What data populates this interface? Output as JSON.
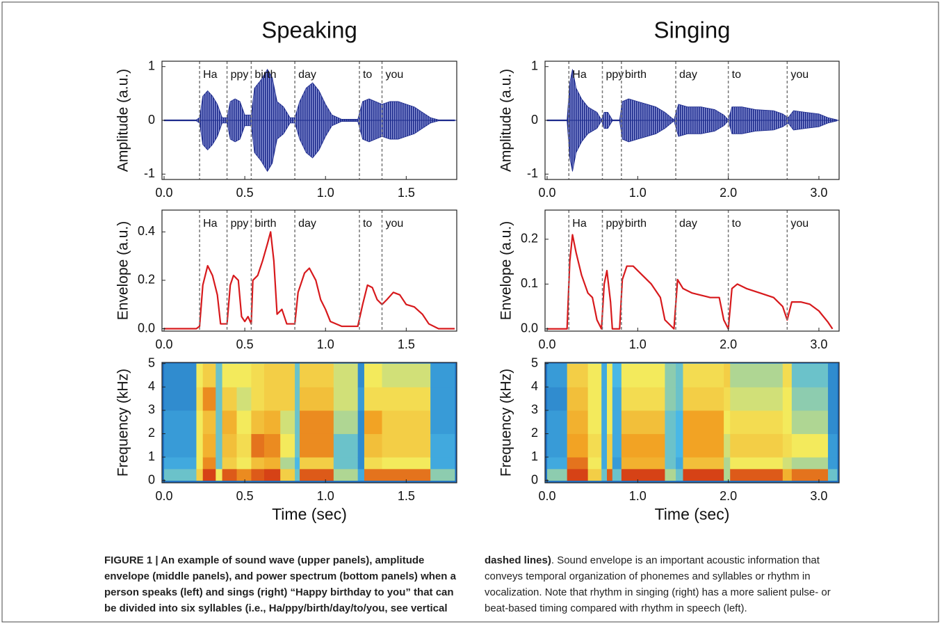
{
  "chart_data": [
    {
      "type": "area",
      "title": "Speaking",
      "ylabel": "Amplitude (a.u.)",
      "color": "#1c2a8c",
      "xlim": [
        0,
        1.8
      ],
      "ylim": [
        -1.1,
        1.1
      ],
      "xticks": [
        {
          "value": 0,
          "label": "0.0"
        },
        0.5,
        {
          "value": 1,
          "label": "1.0"
        },
        1.5
      ],
      "yticks": [
        -1,
        0,
        1
      ],
      "annotations": [
        {
          "x": 0.22,
          "text": "Ha"
        },
        {
          "x": 0.39,
          "text": "ppy"
        },
        {
          "x": 0.54,
          "text": "birth"
        },
        {
          "x": 0.81,
          "text": "day"
        },
        {
          "x": 1.21,
          "text": "to"
        },
        {
          "x": 1.35,
          "text": "you"
        }
      ],
      "x": [
        0,
        0.2,
        0.22,
        0.24,
        0.27,
        0.3,
        0.33,
        0.36,
        0.39,
        0.41,
        0.44,
        0.47,
        0.5,
        0.54,
        0.56,
        0.6,
        0.64,
        0.67,
        0.7,
        0.74,
        0.78,
        0.81,
        0.84,
        0.88,
        0.92,
        0.96,
        1.0,
        1.04,
        1.1,
        1.2,
        1.23,
        1.27,
        1.31,
        1.35,
        1.4,
        1.45,
        1.5,
        1.55,
        1.6,
        1.65,
        1.7,
        1.8
      ],
      "values": [
        0.01,
        0.01,
        0.05,
        0.45,
        0.55,
        0.45,
        0.3,
        0.05,
        0.05,
        0.35,
        0.4,
        0.35,
        0.1,
        0.1,
        0.6,
        0.75,
        0.95,
        0.8,
        0.35,
        0.25,
        0.05,
        0.05,
        0.35,
        0.6,
        0.7,
        0.55,
        0.3,
        0.1,
        0.02,
        0.02,
        0.35,
        0.4,
        0.35,
        0.3,
        0.35,
        0.35,
        0.3,
        0.25,
        0.15,
        0.05,
        0.01,
        0.01
      ]
    },
    {
      "type": "area",
      "title": "Singing",
      "ylabel": "Amplitude (a.u.)",
      "color": "#1c2a8c",
      "xlim": [
        0,
        3.2
      ],
      "ylim": [
        -1.1,
        1.1
      ],
      "xticks": [
        {
          "value": 0,
          "label": "0.0"
        },
        {
          "value": 1,
          "label": "1.0"
        },
        {
          "value": 2,
          "label": "2.0"
        },
        {
          "value": 3,
          "label": "3.0"
        }
      ],
      "yticks": [
        -1,
        0,
        1
      ],
      "annotations": [
        {
          "x": 0.24,
          "text": "Ha"
        },
        {
          "x": 0.61,
          "text": "ppy"
        },
        {
          "x": 0.82,
          "text": "birth"
        },
        {
          "x": 1.42,
          "text": "day"
        },
        {
          "x": 2.0,
          "text": "to"
        },
        {
          "x": 2.65,
          "text": "you"
        }
      ],
      "x": [
        0,
        0.22,
        0.25,
        0.28,
        0.32,
        0.38,
        0.45,
        0.55,
        0.6,
        0.63,
        0.67,
        0.72,
        0.8,
        0.83,
        0.9,
        1.0,
        1.1,
        1.2,
        1.3,
        1.4,
        1.45,
        1.55,
        1.7,
        1.85,
        1.95,
        2.0,
        2.04,
        2.15,
        2.3,
        2.5,
        2.6,
        2.66,
        2.72,
        2.85,
        3.0,
        3.1,
        3.2
      ],
      "values": [
        0.01,
        0.01,
        0.7,
        0.95,
        0.6,
        0.4,
        0.25,
        0.15,
        0.01,
        0.15,
        0.15,
        0.01,
        0.01,
        0.35,
        0.4,
        0.35,
        0.3,
        0.25,
        0.15,
        0.01,
        0.3,
        0.25,
        0.25,
        0.2,
        0.1,
        0.01,
        0.25,
        0.25,
        0.2,
        0.18,
        0.12,
        0.05,
        0.18,
        0.15,
        0.12,
        0.05,
        0.01
      ]
    },
    {
      "type": "line",
      "ylabel": "Envelope (a.u.)",
      "color": "#d7191c",
      "xlim": [
        0,
        1.8
      ],
      "ylim": [
        -0.01,
        0.49
      ],
      "xticks": [
        {
          "value": 0,
          "label": "0.0"
        },
        0.5,
        {
          "value": 1,
          "label": "1.0"
        },
        1.5
      ],
      "yticks": [
        {
          "value": 0,
          "label": "0.0"
        },
        0.2,
        0.4
      ],
      "annotations": [
        {
          "x": 0.22,
          "text": "Ha"
        },
        {
          "x": 0.39,
          "text": "ppy"
        },
        {
          "x": 0.54,
          "text": "birth"
        },
        {
          "x": 0.81,
          "text": "day"
        },
        {
          "x": 1.21,
          "text": "to"
        },
        {
          "x": 1.35,
          "text": "you"
        }
      ],
      "x": [
        0,
        0.2,
        0.22,
        0.24,
        0.27,
        0.3,
        0.33,
        0.35,
        0.39,
        0.41,
        0.43,
        0.46,
        0.48,
        0.5,
        0.52,
        0.54,
        0.55,
        0.58,
        0.61,
        0.64,
        0.66,
        0.68,
        0.7,
        0.73,
        0.76,
        0.81,
        0.83,
        0.87,
        0.9,
        0.94,
        0.97,
        1.0,
        1.03,
        1.1,
        1.2,
        1.23,
        1.26,
        1.29,
        1.32,
        1.35,
        1.38,
        1.42,
        1.46,
        1.5,
        1.55,
        1.6,
        1.64,
        1.7,
        1.8
      ],
      "values": [
        0,
        0,
        0.01,
        0.18,
        0.26,
        0.22,
        0.14,
        0.02,
        0.02,
        0.18,
        0.22,
        0.2,
        0.05,
        0.03,
        0.05,
        0.02,
        0.2,
        0.22,
        0.28,
        0.35,
        0.4,
        0.28,
        0.06,
        0.08,
        0.02,
        0.02,
        0.15,
        0.23,
        0.25,
        0.2,
        0.12,
        0.08,
        0.03,
        0.01,
        0.01,
        0.1,
        0.18,
        0.17,
        0.12,
        0.1,
        0.12,
        0.15,
        0.14,
        0.1,
        0.09,
        0.06,
        0.02,
        0,
        0
      ]
    },
    {
      "type": "line",
      "ylabel": "Envelope (a.u.)",
      "color": "#d7191c",
      "xlim": [
        0,
        3.2
      ],
      "ylim": [
        -0.005,
        0.265
      ],
      "xticks": [
        {
          "value": 0,
          "label": "0.0"
        },
        {
          "value": 1,
          "label": "1.0"
        },
        {
          "value": 2,
          "label": "2.0"
        },
        {
          "value": 3,
          "label": "3.0"
        }
      ],
      "yticks": [
        {
          "value": 0,
          "label": "0.0"
        },
        0.1,
        0.2
      ],
      "annotations": [
        {
          "x": 0.24,
          "text": "Ha"
        },
        {
          "x": 0.61,
          "text": "ppy"
        },
        {
          "x": 0.82,
          "text": "birth"
        },
        {
          "x": 1.42,
          "text": "day"
        },
        {
          "x": 2.0,
          "text": "to"
        },
        {
          "x": 2.65,
          "text": "you"
        }
      ],
      "x": [
        0,
        0.22,
        0.25,
        0.28,
        0.32,
        0.38,
        0.45,
        0.5,
        0.55,
        0.6,
        0.63,
        0.66,
        0.7,
        0.72,
        0.8,
        0.83,
        0.88,
        0.95,
        1.05,
        1.15,
        1.25,
        1.3,
        1.4,
        1.44,
        1.5,
        1.6,
        1.7,
        1.8,
        1.9,
        1.95,
        2.0,
        2.04,
        2.1,
        2.2,
        2.35,
        2.5,
        2.6,
        2.65,
        2.7,
        2.8,
        2.9,
        3.0,
        3.1,
        3.15
      ],
      "values": [
        0,
        0,
        0.15,
        0.21,
        0.17,
        0.12,
        0.08,
        0.07,
        0.02,
        0,
        0.1,
        0.13,
        0.06,
        0,
        0,
        0.11,
        0.14,
        0.14,
        0.12,
        0.1,
        0.07,
        0.02,
        0,
        0.11,
        0.09,
        0.08,
        0.075,
        0.07,
        0.07,
        0.02,
        0,
        0.09,
        0.1,
        0.09,
        0.08,
        0.07,
        0.05,
        0.02,
        0.06,
        0.06,
        0.055,
        0.04,
        0.015,
        0
      ]
    },
    {
      "type": "heatmap",
      "ylabel": "Frequency (kHz)",
      "xlabel": "Time (sec)",
      "colormap": [
        "#1f6fc0",
        "#49b8e6",
        "#f3ea5c",
        "#f2a324",
        "#cf2a12"
      ],
      "xlim": [
        0,
        1.8
      ],
      "ylim": [
        -0.1,
        5.05
      ],
      "xticks": [
        {
          "value": 0,
          "label": "0.0"
        },
        0.5,
        {
          "value": 1,
          "label": "1.0"
        },
        1.5
      ],
      "yticks": [
        0,
        1,
        2,
        3,
        4,
        5
      ],
      "x": [
        0,
        0.2,
        0.24,
        0.32,
        0.36,
        0.45,
        0.54,
        0.62,
        0.72,
        0.81,
        0.84,
        1.05,
        1.2,
        1.24,
        1.35,
        1.65,
        1.8
      ],
      "y": [
        0,
        0.5,
        1,
        2,
        3,
        4,
        5
      ],
      "z": [
        [
          0.3,
          0.2,
          0.15,
          0.15,
          0.1,
          0.1
        ],
        [
          0.6,
          0.5,
          0.5,
          0.5,
          0.55,
          0.5
        ],
        [
          0.95,
          0.8,
          0.7,
          0.65,
          0.8,
          0.6
        ],
        [
          0.5,
          0.3,
          0.3,
          0.3,
          0.3,
          0.3
        ],
        [
          0.9,
          0.6,
          0.65,
          0.7,
          0.6,
          0.5
        ],
        [
          0.8,
          0.5,
          0.55,
          0.5,
          0.45,
          0.5
        ],
        [
          0.9,
          0.65,
          0.85,
          0.65,
          0.55,
          0.55
        ],
        [
          0.95,
          0.7,
          0.8,
          0.7,
          0.6,
          0.6
        ],
        [
          0.6,
          0.4,
          0.5,
          0.45,
          0.6,
          0.6
        ],
        [
          0.3,
          0.25,
          0.3,
          0.3,
          0.3,
          0.3
        ],
        [
          0.9,
          0.6,
          0.8,
          0.8,
          0.65,
          0.6
        ],
        [
          0.4,
          0.3,
          0.3,
          0.4,
          0.45,
          0.45
        ],
        [
          0.2,
          0.1,
          0.1,
          0.1,
          0.15,
          0.1
        ],
        [
          0.85,
          0.55,
          0.65,
          0.75,
          0.55,
          0.5
        ],
        [
          0.85,
          0.5,
          0.6,
          0.6,
          0.55,
          0.45
        ],
        [
          0.35,
          0.2,
          0.2,
          0.15,
          0.15,
          0.15
        ]
      ]
    },
    {
      "type": "heatmap",
      "ylabel": "Frequency (kHz)",
      "xlabel": "Time (sec)",
      "colormap": [
        "#1f6fc0",
        "#49b8e6",
        "#f3ea5c",
        "#f2a324",
        "#cf2a12"
      ],
      "xlim": [
        0,
        3.2
      ],
      "ylim": [
        -0.1,
        5.05
      ],
      "xticks": [
        {
          "value": 0,
          "label": "0.0"
        },
        {
          "value": 1,
          "label": "1.0"
        },
        {
          "value": 2,
          "label": "2.0"
        },
        {
          "value": 3,
          "label": "3.0"
        }
      ],
      "yticks": [
        0,
        1,
        2,
        3,
        4,
        5
      ],
      "x": [
        0,
        0.22,
        0.45,
        0.6,
        0.66,
        0.72,
        0.82,
        1.3,
        1.42,
        1.5,
        1.95,
        2.02,
        2.6,
        2.7,
        3.1,
        3.2
      ],
      "y": [
        0,
        0.5,
        1,
        2,
        3,
        4,
        5
      ],
      "z": [
        [
          0.35,
          0.2,
          0.15,
          0.15,
          0.1,
          0.15
        ],
        [
          0.95,
          0.85,
          0.75,
          0.7,
          0.65,
          0.6
        ],
        [
          0.6,
          0.5,
          0.55,
          0.5,
          0.5,
          0.5
        ],
        [
          0.3,
          0.2,
          0.2,
          0.2,
          0.2,
          0.2
        ],
        [
          0.9,
          0.6,
          0.6,
          0.5,
          0.5,
          0.5
        ],
        [
          0.3,
          0.15,
          0.2,
          0.2,
          0.2,
          0.25
        ],
        [
          0.95,
          0.7,
          0.75,
          0.65,
          0.55,
          0.5
        ],
        [
          0.4,
          0.3,
          0.3,
          0.3,
          0.35,
          0.35
        ],
        [
          0.3,
          0.2,
          0.25,
          0.25,
          0.3,
          0.3
        ],
        [
          0.95,
          0.65,
          0.75,
          0.75,
          0.6,
          0.55
        ],
        [
          0.4,
          0.4,
          0.45,
          0.5,
          0.55,
          0.6
        ],
        [
          0.9,
          0.5,
          0.6,
          0.55,
          0.45,
          0.4
        ],
        [
          0.7,
          0.45,
          0.55,
          0.5,
          0.5,
          0.55
        ],
        [
          0.85,
          0.4,
          0.5,
          0.4,
          0.35,
          0.3
        ],
        [
          0.3,
          0.15,
          0.15,
          0.1,
          0.1,
          0.1
        ]
      ]
    }
  ],
  "caption": {
    "left_lines": [
      "FIGURE 1 | An example of sound wave (upper panels), amplitude",
      "envelope (middle panels), and power spectrum (bottom panels) when a",
      "person speaks (left) and sings (right) “Happy birthday to you” that can",
      "be divided into six syllables (i.e., Ha/ppy/birth/day/to/you, see vertical"
    ],
    "right_bold": "dashed lines)",
    "right_lines": [
      ". Sound envelope is an important acoustic information that",
      "conveys temporal organization of phonemes and syllables or rhythm in",
      "vocalization. Note that rhythm in singing (right) has a more salient pulse- or",
      "beat-based timing compared with rhythm in speech (left)."
    ]
  }
}
